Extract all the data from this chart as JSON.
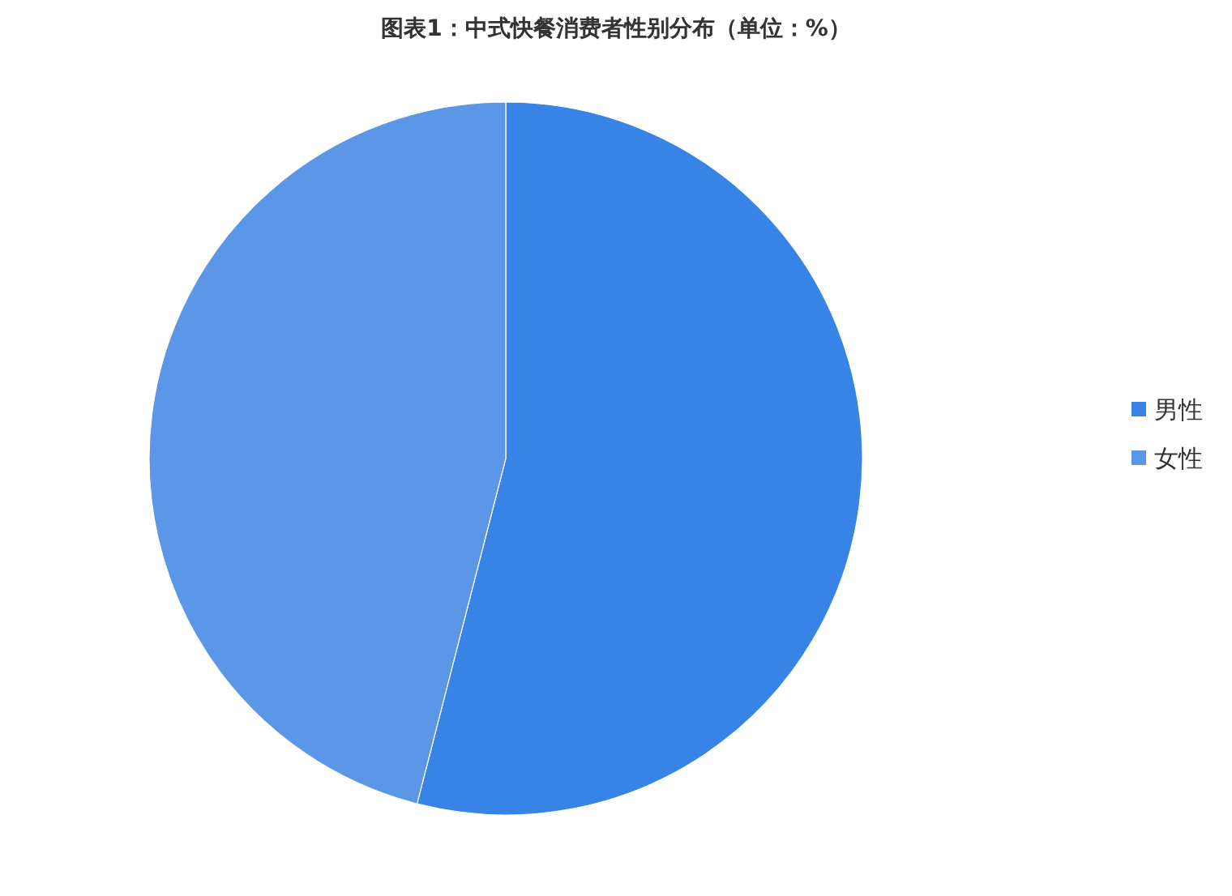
{
  "chart_data": {
    "type": "pie",
    "title": "图表1：中式快餐消费者性别分布（单位：%）",
    "categories": [
      "男性",
      "女性"
    ],
    "values": [
      54,
      46
    ],
    "colors": [
      "#3784e6",
      "#5b97e6"
    ],
    "legend": "right"
  }
}
